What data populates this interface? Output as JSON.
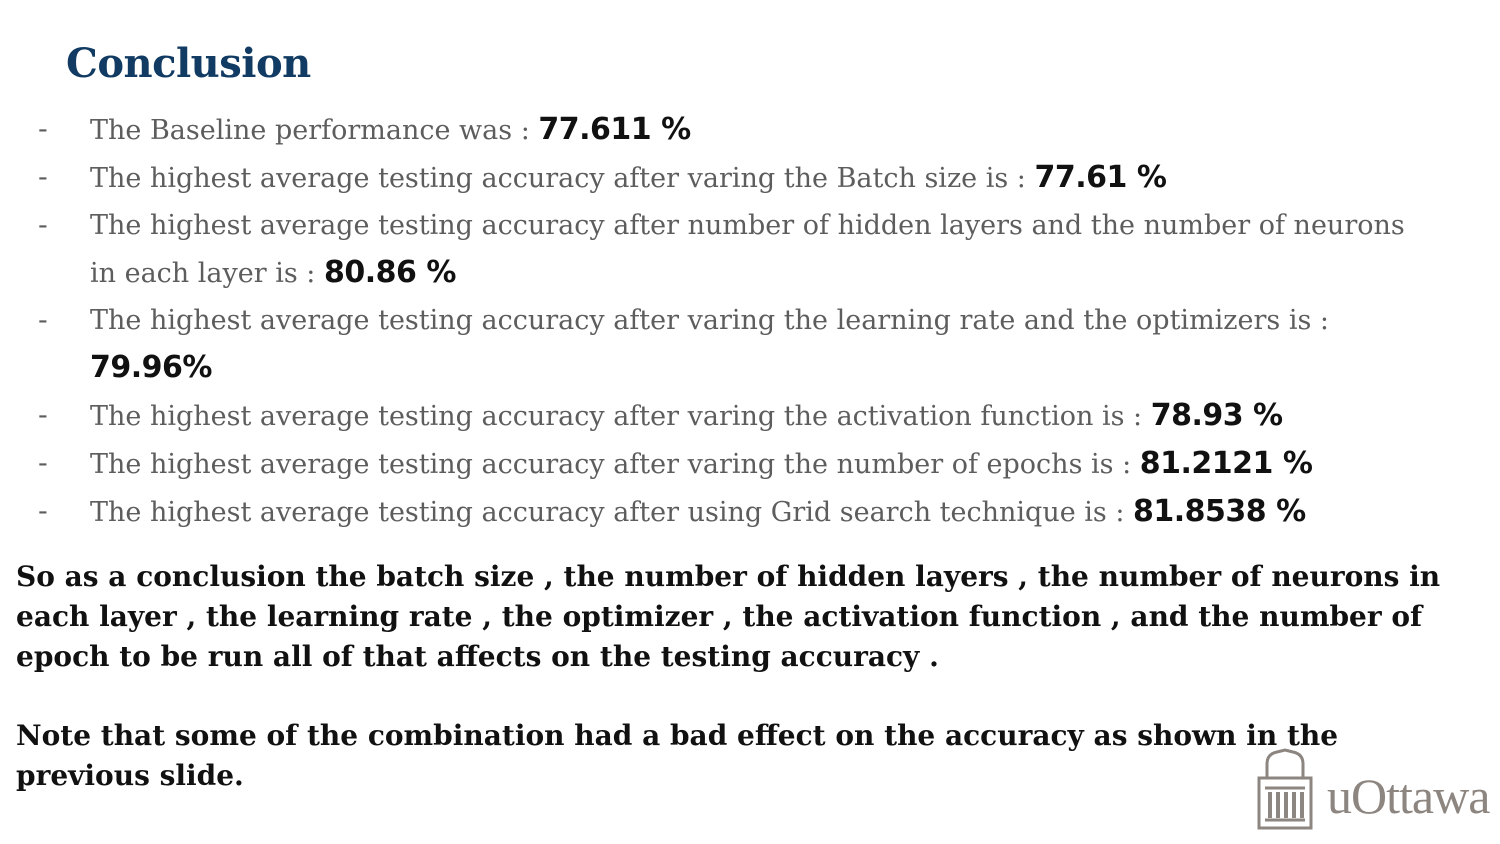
{
  "slide": {
    "title": "Conclusion",
    "bullets": [
      {
        "dash": "-",
        "text": "The Baseline performance was : ",
        "value": "77.611 %"
      },
      {
        "dash": "-",
        "text": "The highest average testing accuracy after varing the Batch size is : ",
        "value": "77.61 %"
      },
      {
        "dash": "-",
        "text": "The highest average testing accuracy after number of hidden layers and the number of neurons in each layer is : ",
        "value": "80.86 %"
      },
      {
        "dash": "-",
        "text": "The highest average testing accuracy after varing the learning rate and the optimizers is : ",
        "value": "79.96%"
      },
      {
        "dash": "-",
        "text": "The highest average testing accuracy after varing the activation function is : ",
        "value": "78.93 %"
      },
      {
        "dash": "-",
        "text": "The highest average testing accuracy after varing the number of epochs is : ",
        "value": "81.2121 %"
      },
      {
        "dash": "-",
        "text": "The highest average testing accuracy after using Grid search technique is : ",
        "value": "81.8538 %"
      }
    ],
    "conclusion": "So as a conclusion the batch size , the number of hidden layers , the number of neurons in each layer , the learning rate , the optimizer , the activation function , and the number of epoch to be run all of that affects on the testing accuracy .",
    "note": "Note that some of the combination had a bad effect on the accuracy as shown in the previous slide."
  },
  "logo": {
    "text": "uOttawa",
    "icon": "building-columns-icon",
    "color": "#8c8580"
  },
  "colors": {
    "title": "#123b63",
    "bullet_text": "#5d5d5d",
    "value_text": "#111111",
    "body_text": "#111111"
  }
}
